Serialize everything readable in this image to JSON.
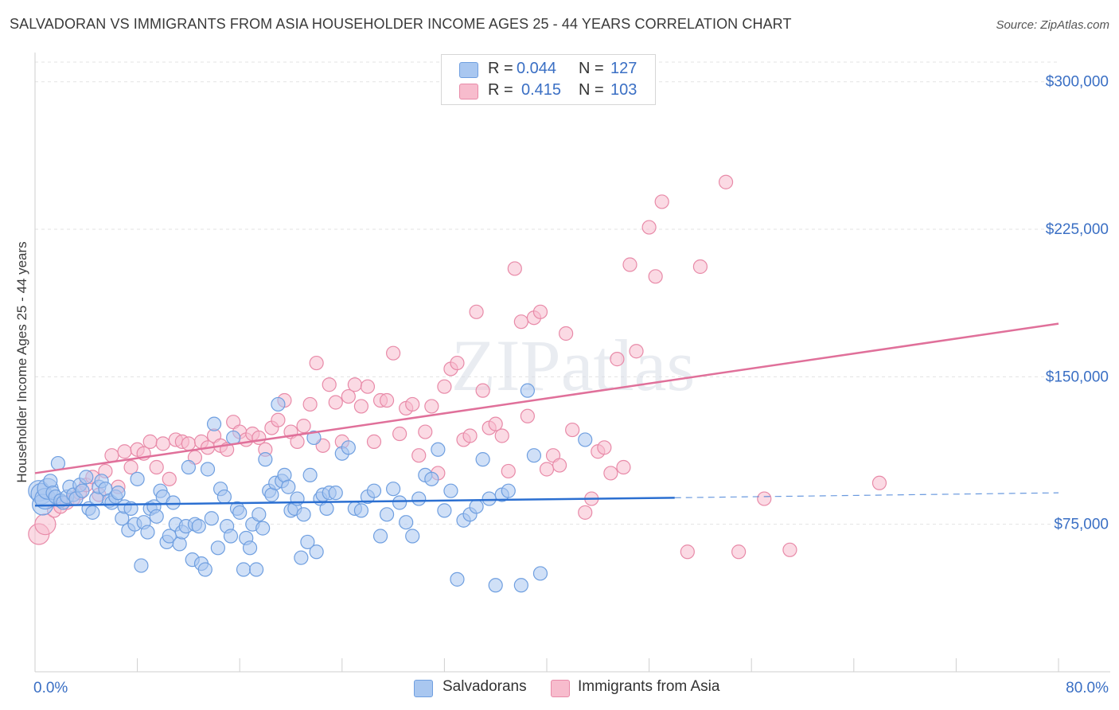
{
  "title": "SALVADORAN VS IMMIGRANTS FROM ASIA HOUSEHOLDER INCOME AGES 25 - 44 YEARS CORRELATION CHART",
  "source": "Source: ZipAtlas.com",
  "watermark": "ZIPatlas",
  "legend": {
    "rows": [
      {
        "r_label": "R =",
        "r_value": "0.044",
        "n_label": "N =",
        "n_value": "127",
        "color": "#a9c7f0",
        "border": "#6f9fe0"
      },
      {
        "r_label": "R =",
        "r_value": "0.415",
        "n_label": "N =",
        "n_value": "103",
        "color": "#f7bccd",
        "border": "#e88aa8"
      }
    ]
  },
  "bottom_legend": [
    {
      "label": "Salvadorans",
      "color": "#a9c7f0",
      "border": "#6f9fe0"
    },
    {
      "label": "Immigrants from Asia",
      "color": "#f7bccd",
      "border": "#e88aa8"
    }
  ],
  "chart_data": {
    "type": "scatter",
    "title": "SALVADORAN VS IMMIGRANTS FROM ASIA HOUSEHOLDER INCOME AGES 25 - 44 YEARS CORRELATION CHART",
    "xlabel": "",
    "ylabel": "Householder Income Ages 25 - 44 years",
    "xlim": [
      0,
      80
    ],
    "ylim": [
      0,
      310000
    ],
    "x_tick_labels": [
      "0.0%",
      "80.0%"
    ],
    "y_ticks": [
      75000,
      150000,
      225000,
      300000
    ],
    "y_tick_labels": [
      "$75,000",
      "$150,000",
      "$225,000",
      "$300,000"
    ],
    "grid": true,
    "legend_position": "top-center",
    "series": [
      {
        "name": "Salvadorans",
        "color": "#6f9fe0",
        "fill": "#a9c7f0",
        "trend": {
          "x0": 0,
          "y0": 84500,
          "x1": 50,
          "y1": 88500,
          "dash_x1": 80,
          "dash_y1": 91000,
          "color": "#2b6fd1"
        },
        "points": [
          [
            0.3,
            92000
          ],
          [
            0.5,
            90500
          ],
          [
            0.6,
            85000
          ],
          [
            0.8,
            88000
          ],
          [
            1.0,
            93000
          ],
          [
            1.2,
            97000
          ],
          [
            1.4,
            91000
          ],
          [
            1.6,
            89000
          ],
          [
            1.8,
            106000
          ],
          [
            2.0,
            87000
          ],
          [
            2.2,
            86000
          ],
          [
            2.5,
            89000
          ],
          [
            2.7,
            94000
          ],
          [
            3.0,
            90000
          ],
          [
            3.2,
            88000
          ],
          [
            3.5,
            95000
          ],
          [
            3.7,
            92000
          ],
          [
            4.0,
            99000
          ],
          [
            4.2,
            83000
          ],
          [
            4.5,
            81000
          ],
          [
            4.8,
            88000
          ],
          [
            5.0,
            94000
          ],
          [
            5.2,
            97000
          ],
          [
            5.5,
            93000
          ],
          [
            5.8,
            87000
          ],
          [
            6.0,
            86000
          ],
          [
            6.3,
            89000
          ],
          [
            6.5,
            91000
          ],
          [
            6.8,
            78000
          ],
          [
            7.0,
            84000
          ],
          [
            7.3,
            72000
          ],
          [
            7.5,
            83000
          ],
          [
            7.8,
            75000
          ],
          [
            8.0,
            98000
          ],
          [
            8.3,
            54000
          ],
          [
            8.5,
            76000
          ],
          [
            8.8,
            71000
          ],
          [
            9.0,
            83000
          ],
          [
            9.3,
            84000
          ],
          [
            9.5,
            79000
          ],
          [
            9.8,
            92000
          ],
          [
            10.0,
            89000
          ],
          [
            10.3,
            66000
          ],
          [
            10.5,
            69000
          ],
          [
            10.8,
            86000
          ],
          [
            11.0,
            75000
          ],
          [
            11.3,
            65000
          ],
          [
            11.5,
            71000
          ],
          [
            11.8,
            74000
          ],
          [
            12.0,
            104000
          ],
          [
            12.3,
            57000
          ],
          [
            12.5,
            75000
          ],
          [
            12.8,
            74000
          ],
          [
            13.0,
            55000
          ],
          [
            13.3,
            52000
          ],
          [
            13.5,
            103000
          ],
          [
            13.8,
            78000
          ],
          [
            14.0,
            126000
          ],
          [
            14.3,
            63000
          ],
          [
            14.5,
            93000
          ],
          [
            14.8,
            89000
          ],
          [
            15.0,
            74000
          ],
          [
            15.3,
            69000
          ],
          [
            15.5,
            119000
          ],
          [
            15.8,
            83000
          ],
          [
            16.0,
            81000
          ],
          [
            16.3,
            52000
          ],
          [
            16.5,
            68000
          ],
          [
            16.8,
            63000
          ],
          [
            17.0,
            75000
          ],
          [
            17.3,
            52000
          ],
          [
            17.5,
            80000
          ],
          [
            17.8,
            73000
          ],
          [
            18.0,
            108000
          ],
          [
            18.3,
            92000
          ],
          [
            18.5,
            90000
          ],
          [
            18.8,
            96000
          ],
          [
            19.0,
            136000
          ],
          [
            19.3,
            97000
          ],
          [
            19.5,
            100000
          ],
          [
            19.8,
            94000
          ],
          [
            20.0,
            82000
          ],
          [
            20.3,
            83000
          ],
          [
            20.5,
            88000
          ],
          [
            20.8,
            58000
          ],
          [
            21.0,
            80000
          ],
          [
            21.3,
            66000
          ],
          [
            21.5,
            100000
          ],
          [
            21.8,
            119000
          ],
          [
            22.0,
            61000
          ],
          [
            22.3,
            88000
          ],
          [
            22.5,
            90000
          ],
          [
            22.8,
            83000
          ],
          [
            23.0,
            91000
          ],
          [
            23.5,
            91000
          ],
          [
            24.0,
            111000
          ],
          [
            24.5,
            114000
          ],
          [
            25.0,
            83000
          ],
          [
            25.5,
            82000
          ],
          [
            26.0,
            89000
          ],
          [
            26.5,
            92000
          ],
          [
            27.0,
            69000
          ],
          [
            27.5,
            80000
          ],
          [
            28.0,
            93000
          ],
          [
            28.5,
            86000
          ],
          [
            29.0,
            76000
          ],
          [
            29.5,
            69000
          ],
          [
            30.0,
            88000
          ],
          [
            30.5,
            100000
          ],
          [
            31.0,
            98000
          ],
          [
            31.5,
            113000
          ],
          [
            32.0,
            82000
          ],
          [
            32.5,
            92000
          ],
          [
            33.0,
            47000
          ],
          [
            33.5,
            77000
          ],
          [
            34.0,
            80000
          ],
          [
            34.5,
            84000
          ],
          [
            35.0,
            108000
          ],
          [
            35.5,
            88000
          ],
          [
            36.0,
            44000
          ],
          [
            36.5,
            90000
          ],
          [
            37.0,
            92000
          ],
          [
            38.0,
            44000
          ],
          [
            38.5,
            143000
          ],
          [
            39.0,
            110000
          ],
          [
            39.5,
            50000
          ],
          [
            43.0,
            118000
          ]
        ]
      },
      {
        "name": "Immigrants from Asia",
        "color": "#e88aa8",
        "fill": "#f7bccd",
        "trend": {
          "x0": 0,
          "y0": 101000,
          "x1": 80,
          "y1": 177000,
          "color": "#e0709a"
        },
        "points": [
          [
            0.3,
            70000
          ],
          [
            0.8,
            75000
          ],
          [
            1.5,
            82000
          ],
          [
            2.0,
            84000
          ],
          [
            2.5,
            86000
          ],
          [
            3.0,
            88000
          ],
          [
            3.5,
            91000
          ],
          [
            4.0,
            95000
          ],
          [
            4.5,
            99000
          ],
          [
            5.0,
            90000
          ],
          [
            5.5,
            102000
          ],
          [
            6.0,
            110000
          ],
          [
            6.5,
            94000
          ],
          [
            7.0,
            112000
          ],
          [
            7.5,
            104000
          ],
          [
            8.0,
            113000
          ],
          [
            8.5,
            111000
          ],
          [
            9.0,
            117000
          ],
          [
            9.5,
            104000
          ],
          [
            10.0,
            116000
          ],
          [
            10.5,
            98000
          ],
          [
            11.0,
            118000
          ],
          [
            11.5,
            117000
          ],
          [
            12.0,
            116000
          ],
          [
            12.5,
            109000
          ],
          [
            13.0,
            117000
          ],
          [
            13.5,
            114000
          ],
          [
            14.0,
            120000
          ],
          [
            14.5,
            115000
          ],
          [
            15.0,
            113000
          ],
          [
            15.5,
            127000
          ],
          [
            16.0,
            122000
          ],
          [
            16.5,
            118000
          ],
          [
            17.0,
            121000
          ],
          [
            17.5,
            119000
          ],
          [
            18.0,
            113000
          ],
          [
            18.5,
            124000
          ],
          [
            19.0,
            128000
          ],
          [
            19.5,
            138000
          ],
          [
            20.0,
            122000
          ],
          [
            20.5,
            117000
          ],
          [
            21.0,
            125000
          ],
          [
            21.5,
            136000
          ],
          [
            22.0,
            157000
          ],
          [
            22.5,
            115000
          ],
          [
            23.0,
            146000
          ],
          [
            23.5,
            137000
          ],
          [
            24.0,
            117000
          ],
          [
            24.5,
            140000
          ],
          [
            25.0,
            146000
          ],
          [
            25.5,
            135000
          ],
          [
            26.0,
            145000
          ],
          [
            26.5,
            117000
          ],
          [
            27.0,
            138000
          ],
          [
            27.5,
            138000
          ],
          [
            28.0,
            162000
          ],
          [
            28.5,
            121000
          ],
          [
            29.0,
            134000
          ],
          [
            29.5,
            136000
          ],
          [
            30.0,
            110000
          ],
          [
            30.5,
            122000
          ],
          [
            31.0,
            135000
          ],
          [
            31.5,
            101000
          ],
          [
            32.0,
            145000
          ],
          [
            32.5,
            154000
          ],
          [
            33.0,
            157000
          ],
          [
            33.5,
            118000
          ],
          [
            34.0,
            120000
          ],
          [
            34.5,
            183000
          ],
          [
            35.0,
            143000
          ],
          [
            35.5,
            124000
          ],
          [
            36.0,
            126000
          ],
          [
            36.5,
            120000
          ],
          [
            37.0,
            102000
          ],
          [
            37.5,
            205000
          ],
          [
            38.0,
            178000
          ],
          [
            38.5,
            130000
          ],
          [
            39.0,
            180000
          ],
          [
            39.5,
            183000
          ],
          [
            40.0,
            103000
          ],
          [
            40.5,
            110000
          ],
          [
            41.0,
            105000
          ],
          [
            41.5,
            172000
          ],
          [
            42.0,
            123000
          ],
          [
            43.0,
            81000
          ],
          [
            43.5,
            88000
          ],
          [
            44.0,
            112000
          ],
          [
            44.5,
            114000
          ],
          [
            45.0,
            101000
          ],
          [
            45.5,
            159000
          ],
          [
            46.0,
            104000
          ],
          [
            46.5,
            207000
          ],
          [
            47.0,
            163000
          ],
          [
            48.0,
            226000
          ],
          [
            48.5,
            201000
          ],
          [
            49.0,
            239000
          ],
          [
            51.0,
            61000
          ],
          [
            52.0,
            206000
          ],
          [
            54.0,
            249000
          ],
          [
            55.0,
            61000
          ],
          [
            57.0,
            88000
          ],
          [
            59.0,
            62000
          ],
          [
            66.0,
            96000
          ]
        ]
      }
    ]
  }
}
